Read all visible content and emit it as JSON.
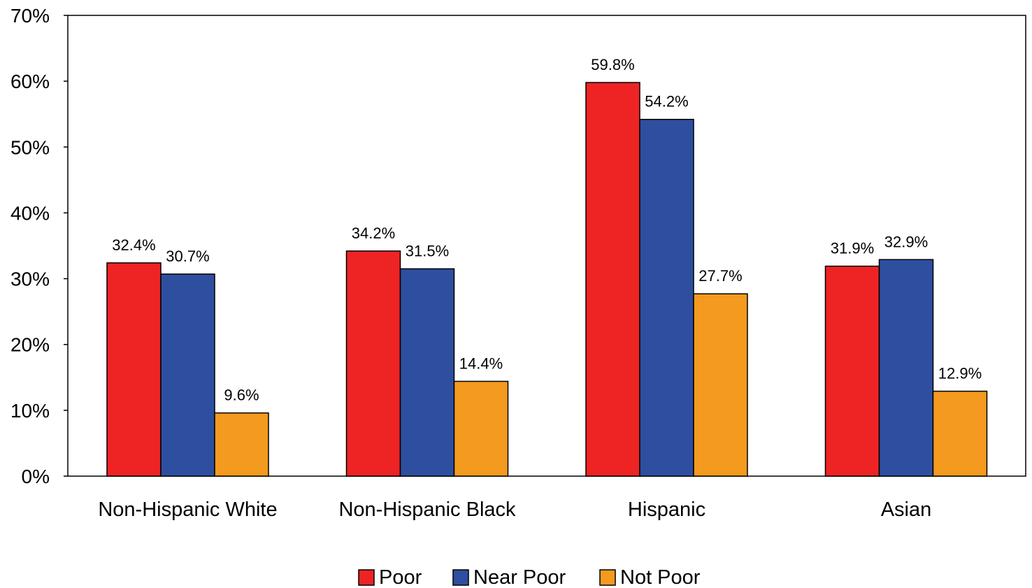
{
  "chart_data": {
    "type": "bar",
    "categories": [
      "Non-Hispanic White",
      "Non-Hispanic Black",
      "Hispanic",
      "Asian"
    ],
    "series": [
      {
        "name": "Poor",
        "values": [
          32.4,
          34.2,
          59.8,
          31.9
        ],
        "labels": [
          "32.4%",
          "34.2%",
          "59.8%",
          "31.9%"
        ],
        "color": "#ee2324"
      },
      {
        "name": "Near Poor",
        "values": [
          30.7,
          31.5,
          54.2,
          32.9
        ],
        "labels": [
          "30.7%",
          "31.5%",
          "54.2%",
          "32.9%"
        ],
        "color": "#2e4f9f"
      },
      {
        "name": "Not Poor",
        "values": [
          9.6,
          14.4,
          27.7,
          12.9
        ],
        "labels": [
          "9.6%",
          "14.4%",
          "27.7%",
          "12.9%"
        ],
        "color": "#f39a1f"
      }
    ],
    "yticks": [
      0,
      10,
      20,
      30,
      40,
      50,
      60,
      70
    ],
    "ytick_labels": [
      "0%",
      "10%",
      "20%",
      "30%",
      "40%",
      "50%",
      "60%",
      "70%"
    ],
    "ylim": [
      0,
      70
    ],
    "grid": false,
    "legend_position": "bottom"
  }
}
